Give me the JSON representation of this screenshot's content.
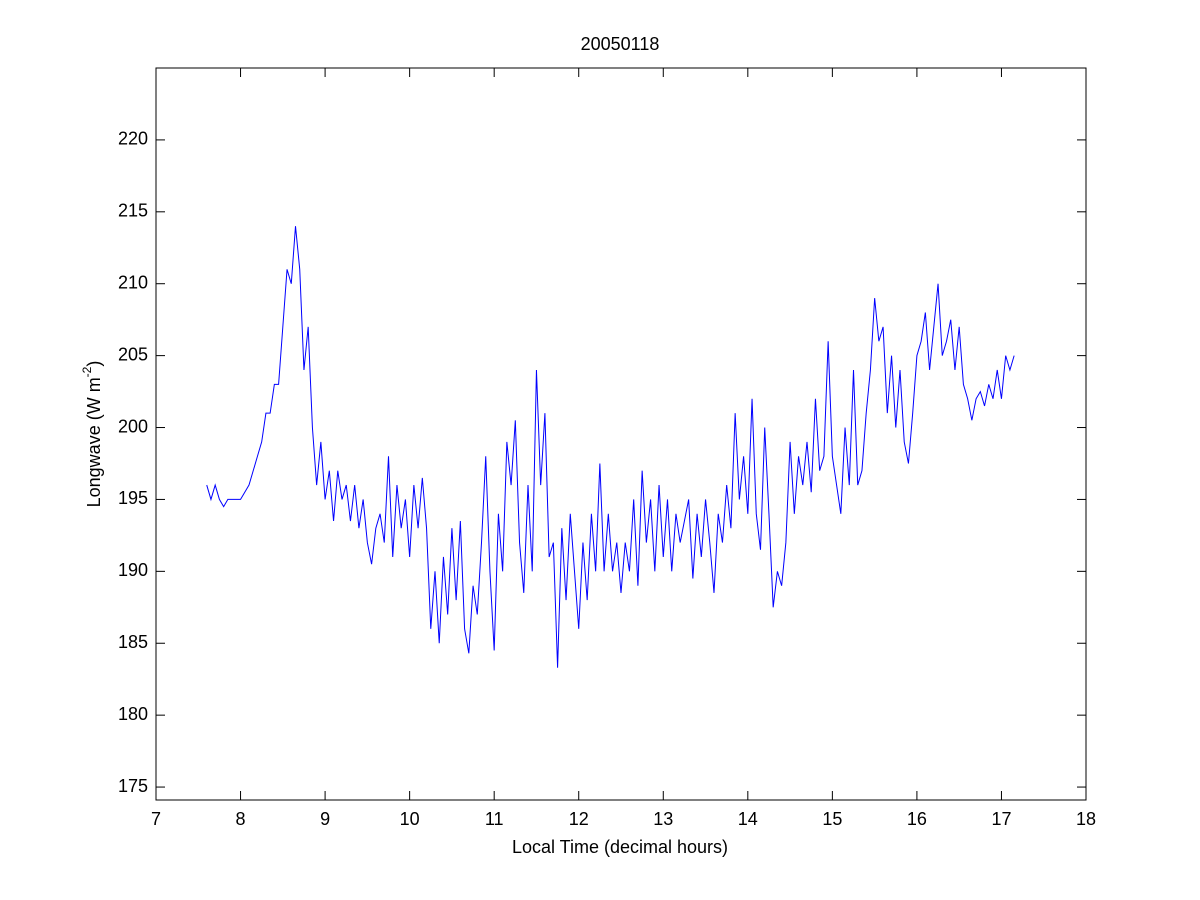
{
  "chart_data": {
    "type": "line",
    "title": "20050118",
    "xlabel": "Local Time (decimal hours)",
    "ylabel_parts": [
      "Longwave (W m",
      "-2",
      ")"
    ],
    "xlim": [
      7,
      18
    ],
    "xticks": [
      7,
      8,
      9,
      10,
      11,
      12,
      13,
      14,
      15,
      16,
      17,
      18
    ],
    "ylim": [
      174.1,
      225
    ],
    "yticks": [
      175,
      180,
      185,
      190,
      195,
      200,
      205,
      210,
      215,
      220
    ],
    "grid": false,
    "series": [
      {
        "color": "#0000ff",
        "x": [
          7.6,
          7.65,
          7.7,
          7.75,
          7.8,
          7.85,
          7.9,
          7.95,
          8.0,
          8.05,
          8.1,
          8.15,
          8.2,
          8.25,
          8.3,
          8.35,
          8.4,
          8.45,
          8.5,
          8.55,
          8.6,
          8.65,
          8.7,
          8.75,
          8.8,
          8.85,
          8.9,
          8.95,
          9.0,
          9.05,
          9.1,
          9.15,
          9.2,
          9.25,
          9.3,
          9.35,
          9.4,
          9.45,
          9.5,
          9.55,
          9.6,
          9.65,
          9.7,
          9.75,
          9.8,
          9.85,
          9.9,
          9.95,
          10.0,
          10.05,
          10.1,
          10.15,
          10.2,
          10.25,
          10.3,
          10.35,
          10.4,
          10.45,
          10.5,
          10.55,
          10.6,
          10.65,
          10.7,
          10.75,
          10.8,
          10.85,
          10.9,
          10.95,
          11.0,
          11.05,
          11.1,
          11.15,
          11.2,
          11.25,
          11.3,
          11.35,
          11.4,
          11.45,
          11.5,
          11.55,
          11.6,
          11.65,
          11.7,
          11.75,
          11.8,
          11.85,
          11.9,
          11.95,
          12.0,
          12.05,
          12.1,
          12.15,
          12.2,
          12.25,
          12.3,
          12.35,
          12.4,
          12.45,
          12.5,
          12.55,
          12.6,
          12.65,
          12.7,
          12.75,
          12.8,
          12.85,
          12.9,
          12.95,
          13.0,
          13.05,
          13.1,
          13.15,
          13.2,
          13.25,
          13.3,
          13.35,
          13.4,
          13.45,
          13.5,
          13.55,
          13.6,
          13.65,
          13.7,
          13.75,
          13.8,
          13.85,
          13.9,
          13.95,
          14.0,
          14.05,
          14.1,
          14.15,
          14.2,
          14.25,
          14.3,
          14.35,
          14.4,
          14.45,
          14.5,
          14.55,
          14.6,
          14.65,
          14.7,
          14.75,
          14.8,
          14.85,
          14.9,
          14.95,
          15.0,
          15.05,
          15.1,
          15.15,
          15.2,
          15.25,
          15.3,
          15.35,
          15.4,
          15.45,
          15.5,
          15.55,
          15.6,
          15.65,
          15.7,
          15.75,
          15.8,
          15.85,
          15.9,
          15.95,
          16.0,
          16.05,
          16.1,
          16.15,
          16.2,
          16.25,
          16.3,
          16.35,
          16.4,
          16.45,
          16.5,
          16.55,
          16.6,
          16.65,
          16.7,
          16.75,
          16.8,
          16.85,
          16.9,
          16.95,
          17.0,
          17.05,
          17.1,
          17.15
        ],
        "values": [
          196,
          195,
          196,
          195,
          194.5,
          195,
          195,
          195,
          195,
          195.5,
          196,
          197,
          198,
          199,
          201,
          201,
          203,
          203,
          207,
          211,
          210,
          214,
          211,
          204,
          207,
          200,
          196,
          199,
          195,
          197,
          193.5,
          197,
          195,
          196,
          193.5,
          196,
          193,
          195,
          192,
          190.5,
          193,
          194,
          192,
          198,
          191,
          196,
          193,
          195,
          191,
          196,
          193,
          196.5,
          193,
          186,
          190,
          185,
          191,
          187,
          193,
          188,
          193.5,
          186,
          184.3,
          189,
          187,
          192,
          198,
          190,
          184.5,
          194,
          190,
          199,
          196,
          200.5,
          192,
          188.5,
          196,
          190,
          204,
          196,
          201,
          191,
          192,
          183.3,
          193,
          188,
          194,
          190,
          186,
          192,
          188,
          194,
          190,
          197.5,
          190,
          194,
          190,
          192,
          188.5,
          192,
          190,
          195,
          189,
          197,
          192,
          195,
          190,
          196,
          191,
          195,
          190,
          194,
          192,
          193.5,
          195,
          189.5,
          194,
          191,
          195,
          192,
          188.5,
          194,
          192,
          196,
          193,
          201,
          195,
          198,
          194,
          202,
          194,
          191.5,
          200,
          194,
          187.5,
          190,
          189,
          192,
          199,
          194,
          198,
          196,
          199,
          195.5,
          202,
          197,
          198,
          206,
          198,
          196,
          194,
          200,
          196,
          204,
          196,
          197,
          201,
          204,
          209,
          206,
          207,
          201,
          205,
          200,
          204,
          199,
          197.5,
          201,
          205,
          206,
          208,
          204,
          207,
          210,
          205,
          206,
          207.5,
          204,
          207,
          203,
          202,
          200.5,
          202,
          202.5,
          201.5,
          203,
          202,
          204,
          202,
          205,
          204,
          205
        ]
      }
    ]
  }
}
